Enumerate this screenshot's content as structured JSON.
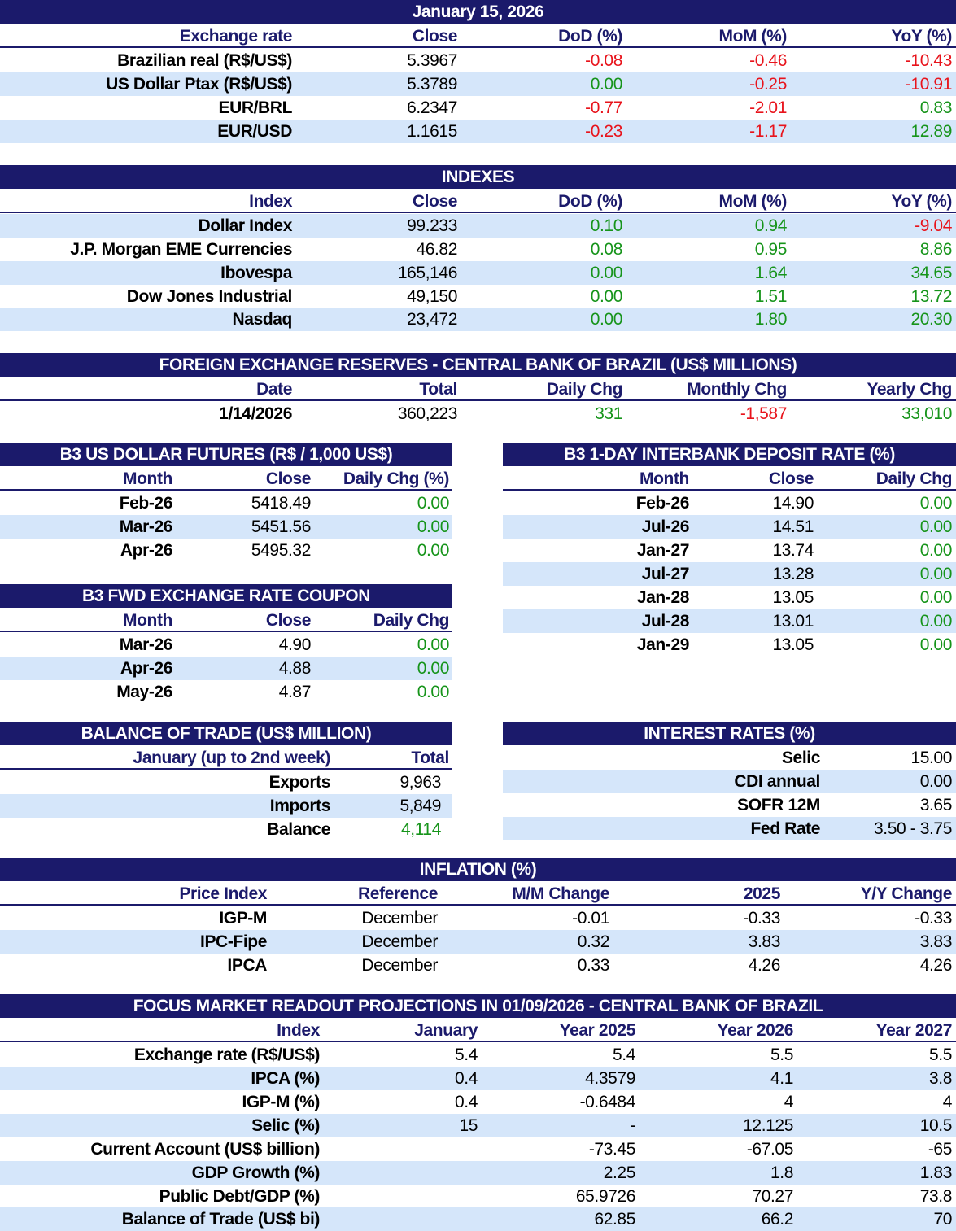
{
  "exchange": {
    "date": "January 15, 2026",
    "headers": [
      "Exchange rate",
      "Close",
      "DoD (%)",
      "MoM (%)",
      "YoY (%)"
    ],
    "rows": [
      {
        "name": "Brazilian real (R$/US$)",
        "close": "5.3967",
        "dod": "-0.08",
        "mom": "-0.46",
        "yoy": "-10.43"
      },
      {
        "name": "US Dollar Ptax (R$/US$)",
        "close": "5.3789",
        "dod": "0.00",
        "mom": "-0.25",
        "yoy": "-10.91"
      },
      {
        "name": "EUR/BRL",
        "close": "6.2347",
        "dod": "-0.77",
        "mom": "-2.01",
        "yoy": "0.83"
      },
      {
        "name": "EUR/USD",
        "close": "1.1615",
        "dod": "-0.23",
        "mom": "-1.17",
        "yoy": "12.89"
      }
    ]
  },
  "indexes": {
    "title": "INDEXES",
    "headers": [
      "Index",
      "Close",
      "DoD (%)",
      "MoM (%)",
      "YoY (%)"
    ],
    "rows": [
      {
        "name": "Dollar Index",
        "close": "99.233",
        "dod": "0.10",
        "mom": "0.94",
        "yoy": "-9.04"
      },
      {
        "name": "J.P. Morgan EME Currencies",
        "close": "46.82",
        "dod": "0.08",
        "mom": "0.95",
        "yoy": "8.86"
      },
      {
        "name": "Ibovespa",
        "close": "165,146",
        "dod": "0.00",
        "mom": "1.64",
        "yoy": "34.65"
      },
      {
        "name": "Dow Jones Industrial",
        "close": "49,150",
        "dod": "0.00",
        "mom": "1.51",
        "yoy": "13.72"
      },
      {
        "name": "Nasdaq",
        "close": "23,472",
        "dod": "0.00",
        "mom": "1.80",
        "yoy": "20.30"
      }
    ]
  },
  "reserves": {
    "title": "FOREIGN EXCHANGE RESERVES - CENTRAL BANK OF BRAZIL (US$ MILLIONS)",
    "headers": [
      "Date",
      "Total",
      "Daily Chg",
      "Monthly Chg",
      "Yearly Chg"
    ],
    "row": {
      "date": "1/14/2026",
      "total": "360,223",
      "daily": "331",
      "monthly": "-1,587",
      "yearly": "33,010"
    }
  },
  "futures": {
    "title": "B3 US DOLLAR FUTURES (R$ / 1,000 US$)",
    "headers": [
      "Month",
      "Close",
      "Daily Chg (%)"
    ],
    "rows": [
      {
        "month": "Feb-26",
        "close": "5418.49",
        "chg": "0.00"
      },
      {
        "month": "Mar-26",
        "close": "5451.56",
        "chg": "0.00"
      },
      {
        "month": "Apr-26",
        "close": "5495.32",
        "chg": "0.00"
      }
    ]
  },
  "coupon": {
    "title": "B3 FWD EXCHANGE RATE COUPON",
    "headers": [
      "Month",
      "Close",
      "Daily Chg"
    ],
    "rows": [
      {
        "month": "Mar-26",
        "close": "4.90",
        "chg": "0.00"
      },
      {
        "month": "Apr-26",
        "close": "4.88",
        "chg": "0.00"
      },
      {
        "month": "May-26",
        "close": "4.87",
        "chg": "0.00"
      }
    ]
  },
  "interbank": {
    "title": "B3 1-DAY INTERBANK DEPOSIT RATE (%)",
    "headers": [
      "Month",
      "Close",
      "Daily Chg"
    ],
    "rows": [
      {
        "month": "Feb-26",
        "close": "14.90",
        "chg": "0.00"
      },
      {
        "month": "Jul-26",
        "close": "14.51",
        "chg": "0.00"
      },
      {
        "month": "Jan-27",
        "close": "13.74",
        "chg": "0.00"
      },
      {
        "month": "Jul-27",
        "close": "13.28",
        "chg": "0.00"
      },
      {
        "month": "Jan-28",
        "close": "13.05",
        "chg": "0.00"
      },
      {
        "month": "Jul-28",
        "close": "13.01",
        "chg": "0.00"
      },
      {
        "month": "Jan-29",
        "close": "13.05",
        "chg": "0.00"
      }
    ]
  },
  "trade": {
    "title": "BALANCE OF TRADE (US$ MILLION)",
    "headers": [
      "January (up to 2nd week)",
      "Total"
    ],
    "rows": [
      {
        "name": "Exports",
        "total": "9,963"
      },
      {
        "name": "Imports",
        "total": "5,849"
      },
      {
        "name": "Balance",
        "total": "4,114"
      }
    ]
  },
  "rates": {
    "title": "INTEREST RATES (%)",
    "rows": [
      {
        "name": "Selic",
        "value": "15.00"
      },
      {
        "name": "CDI annual",
        "value": "0.00"
      },
      {
        "name": "SOFR 12M",
        "value": "3.65"
      },
      {
        "name": "Fed Rate",
        "value": "3.50 - 3.75"
      }
    ]
  },
  "inflation": {
    "title": "INFLATION (%)",
    "headers": [
      "Price Index",
      "Reference",
      "M/M Change",
      "2025",
      "Y/Y Change"
    ],
    "rows": [
      {
        "name": "IGP-M",
        "ref": "December",
        "mm": "-0.01",
        "y2025": "-0.33",
        "yy": "-0.33"
      },
      {
        "name": "IPC-Fipe",
        "ref": "December",
        "mm": "0.32",
        "y2025": "3.83",
        "yy": "3.83"
      },
      {
        "name": "IPCA",
        "ref": "December",
        "mm": "0.33",
        "y2025": "4.26",
        "yy": "4.26"
      }
    ]
  },
  "focus": {
    "title": "FOCUS MARKET READOUT PROJECTIONS IN 01/09/2026 - CENTRAL BANK OF BRAZIL",
    "headers": [
      "Index",
      "January",
      "Year 2025",
      "Year 2026",
      "Year 2027"
    ],
    "rows": [
      {
        "name": "Exchange rate (R$/US$)",
        "jan": "5.4",
        "y2025": "5.4",
        "y2026": "5.5",
        "y2027": "5.5"
      },
      {
        "name": "IPCA (%)",
        "jan": "0.4",
        "y2025": "4.3579",
        "y2026": "4.1",
        "y2027": "3.8"
      },
      {
        "name": "IGP-M (%)",
        "jan": "0.4",
        "y2025": "-0.6484",
        "y2026": "4",
        "y2027": "4"
      },
      {
        "name": "Selic (%)",
        "jan": "15",
        "y2025": "-",
        "y2026": "12.125",
        "y2027": "10.5"
      },
      {
        "name": "Current Account (US$ billion)",
        "jan": "",
        "y2025": "-73.45",
        "y2026": "-67.05",
        "y2027": "-65"
      },
      {
        "name": "GDP Growth (%)",
        "jan": "",
        "y2025": "2.25",
        "y2026": "1.8",
        "y2027": "1.83"
      },
      {
        "name": "Public Debt/GDP (%)",
        "jan": "",
        "y2025": "65.9726",
        "y2026": "70.27",
        "y2027": "73.8"
      },
      {
        "name": "Balance of Trade (US$ bi)",
        "jan": "",
        "y2025": "62.85",
        "y2026": "66.2",
        "y2027": "70"
      }
    ]
  },
  "colors": {
    "navy": "#1b1a6b",
    "stripe": "#d5e6fa",
    "negative": "#e8131b",
    "positive": "#16941a"
  }
}
